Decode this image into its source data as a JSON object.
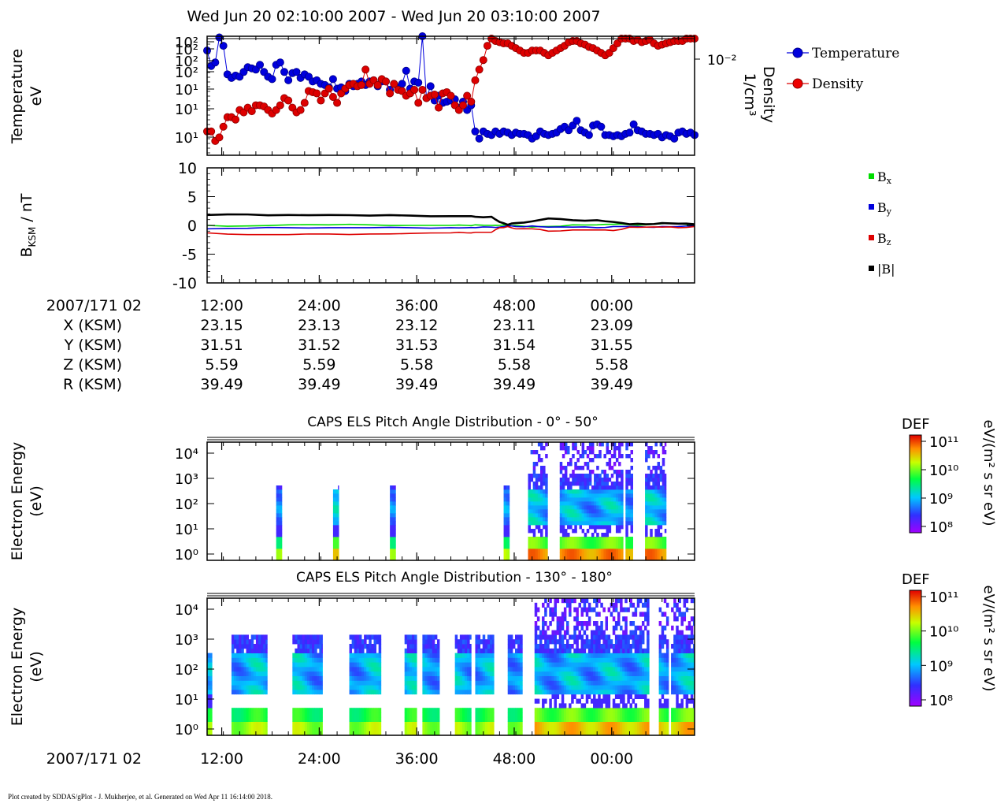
{
  "header": {
    "title": "Wed Jun 20 02:10:00 2007 - Wed Jun 20 03:10:00 2007"
  },
  "footer": {
    "text": "Plot created by SDDAS/gPlot - J. Mukherjee, et al.  Generated on Wed Apr 11 16:14:00 2018."
  },
  "time_axis": {
    "ticks": [
      "12:00",
      "24:00",
      "36:00",
      "48:00",
      "00:00"
    ],
    "label": "2007/171 02"
  },
  "ephemeris": {
    "rows": [
      {
        "label": "X (KSM)",
        "values": [
          "23.15",
          "23.13",
          "23.12",
          "23.11",
          "23.09"
        ]
      },
      {
        "label": "Y (KSM)",
        "values": [
          "31.51",
          "31.52",
          "31.53",
          "31.54",
          "31.55"
        ]
      },
      {
        "label": "Z (KSM)",
        "values": [
          "5.59",
          "5.59",
          "5.58",
          "5.58",
          "5.58"
        ]
      },
      {
        "label": "R (KSM)",
        "values": [
          "39.49",
          "39.49",
          "39.49",
          "39.49",
          "39.49"
        ]
      }
    ]
  },
  "colorbar": {
    "title": "DEF",
    "units": "eV/(m² s sr eV)",
    "ticks": [
      "10¹¹",
      "10¹⁰",
      "10⁹",
      "10⁸"
    ]
  },
  "chart_data": [
    {
      "type": "line",
      "panel": "moments",
      "ylabel": "Temperature eV",
      "ylabel_lines": [
        "Temperature",
        "eV"
      ],
      "yticks_left": [
        "10²",
        "10²",
        "10²",
        "10²",
        "10¹",
        "10¹",
        "10¹"
      ],
      "y2label": "Density 1/cm³",
      "y2label_lines": [
        "Density",
        "1/cm³"
      ],
      "ytick_right": "10⁻²",
      "xlim_min": [
        0,
        60
      ],
      "legend_position": "right",
      "series": [
        {
          "name": "Temperature",
          "color": "#0000dd",
          "x": [
            0,
            0.5,
            1,
            1.5,
            2,
            2.5,
            3,
            3.5,
            4,
            4.5,
            5,
            5.5,
            6,
            6.5,
            7,
            7.5,
            8,
            8.5,
            9,
            9.5,
            10,
            10.5,
            11,
            11.5,
            12,
            12.5,
            13,
            13.5,
            14,
            14.5,
            15,
            15.5,
            16,
            16.5,
            17,
            17.5,
            18,
            18.5,
            19,
            19.5,
            20,
            20.5,
            21,
            21.5,
            22,
            22.5,
            23,
            23.5,
            24,
            24.5,
            25,
            25.5,
            26,
            26.5,
            27,
            27.5,
            28,
            28.5,
            29,
            29.5,
            30,
            30.5,
            31,
            31.5,
            32,
            32.5,
            33,
            33.5,
            34,
            34.5,
            35,
            35.5,
            36,
            36.5,
            37,
            37.5,
            38,
            38.5,
            39,
            39.5,
            40,
            40.5,
            41,
            41.5,
            42,
            42.5,
            43,
            43.5,
            44,
            44.5,
            45,
            45.5,
            46,
            46.5,
            47,
            47.5,
            48,
            48.5,
            49,
            49.5,
            50,
            50.5,
            51,
            51.5,
            52,
            52.5,
            53,
            53.5,
            54,
            54.5,
            55,
            55.5,
            56,
            56.5,
            57,
            57.5,
            58,
            58.5,
            59,
            59.5,
            60
          ],
          "values": [
            88,
            75,
            78,
            99,
            92,
            68,
            65,
            67,
            66,
            70,
            74,
            73,
            72,
            76,
            70,
            66,
            64,
            76,
            78,
            70,
            63,
            69,
            70,
            65,
            68,
            66,
            62,
            63,
            60,
            59,
            57,
            64,
            56,
            57,
            54,
            60,
            58,
            60,
            62,
            59,
            62,
            63,
            58,
            62,
            62,
            55,
            60,
            57,
            60,
            71,
            56,
            62,
            61,
            100,
            48,
            58,
            46,
            50,
            44,
            45,
            46,
            47,
            40,
            45,
            38,
            42,
            20,
            14,
            20,
            18,
            17,
            20,
            18,
            20,
            19,
            17,
            19,
            18,
            18,
            17,
            14,
            16,
            20,
            18,
            17,
            18,
            19,
            22,
            24,
            21,
            25,
            29,
            21,
            19,
            17,
            25,
            26,
            24,
            17,
            17,
            16,
            17,
            16,
            18,
            19,
            26,
            21,
            20,
            18,
            18,
            17,
            18,
            15,
            17,
            16,
            14,
            19,
            20,
            18,
            19,
            17
          ]
        },
        {
          "name": "Density",
          "color": "#dd0000",
          "x": [
            0,
            0.5,
            1,
            1.5,
            2,
            2.5,
            3,
            3.5,
            4,
            4.5,
            5,
            5.5,
            6,
            6.5,
            7,
            7.5,
            8,
            8.5,
            9,
            9.5,
            10,
            10.5,
            11,
            11.5,
            12,
            12.5,
            13,
            13.5,
            14,
            14.5,
            15,
            15.5,
            16,
            16.5,
            17,
            17.5,
            18,
            18.5,
            19,
            19.5,
            20,
            20.5,
            21,
            21.5,
            22,
            22.5,
            23,
            23.5,
            24,
            24.5,
            25,
            25.5,
            26,
            26.5,
            27,
            27.5,
            28,
            28.5,
            29,
            29.5,
            30,
            30.5,
            31,
            31.5,
            32,
            32.5,
            33,
            33.5,
            34,
            34.5,
            35,
            35.5,
            36,
            36.5,
            37,
            37.5,
            38,
            38.5,
            39,
            39.5,
            40,
            40.5,
            41,
            41.5,
            42,
            42.5,
            43,
            43.5,
            44,
            44.5,
            45,
            45.5,
            46,
            46.5,
            47,
            47.5,
            48,
            48.5,
            49,
            49.5,
            50,
            50.5,
            51,
            51.5,
            52,
            52.5,
            53,
            53.5,
            54,
            54.5,
            55,
            55.5,
            56,
            56.5,
            57,
            57.5,
            58,
            58.5,
            59,
            59.5,
            60
          ],
          "values": [
            20,
            20,
            12,
            15,
            24,
            32,
            32,
            30,
            38,
            36,
            40,
            37,
            42,
            42,
            41,
            38,
            35,
            38,
            42,
            48,
            46,
            40,
            36,
            38,
            44,
            54,
            53,
            52,
            46,
            52,
            56,
            49,
            44,
            52,
            56,
            59,
            60,
            58,
            59,
            72,
            60,
            63,
            59,
            64,
            62,
            52,
            60,
            55,
            54,
            50,
            52,
            55,
            44,
            55,
            48,
            50,
            51,
            40,
            52,
            53,
            50,
            42,
            38,
            42,
            50,
            45,
            63,
            72,
            80,
            92,
            98,
            96,
            95,
            94,
            94,
            92,
            90,
            88,
            86,
            86,
            88,
            88,
            88,
            86,
            84,
            86,
            88,
            90,
            92,
            95,
            96,
            96,
            94,
            93,
            91,
            90,
            88,
            86,
            84,
            86,
            90,
            94,
            98,
            98,
            98,
            96,
            97,
            95,
            96,
            97,
            94,
            92,
            93,
            94,
            95,
            96,
            96,
            96,
            98,
            98,
            98
          ]
        }
      ]
    },
    {
      "type": "line",
      "panel": "magnetic_field",
      "ylabel": "B_KSM / nT",
      "ylim": [
        -10,
        10
      ],
      "yticks": [
        10,
        5,
        0,
        -5,
        -10
      ],
      "legend_position": "right",
      "series": [
        {
          "name": "Bx",
          "color": "#00dd00",
          "x": [
            0,
            5,
            10,
            15,
            20,
            25,
            30,
            32,
            33,
            35,
            36,
            37,
            38,
            40,
            42,
            45,
            48,
            50,
            52,
            54,
            56,
            58,
            60
          ],
          "values": [
            0.0,
            -0.1,
            0.1,
            0.1,
            0.1,
            0.0,
            0.0,
            0.0,
            0.1,
            0.0,
            0.0,
            0.0,
            0.0,
            -0.3,
            -0.2,
            0.1,
            0.1,
            0.2,
            0.1,
            0.1,
            0.3,
            0.3,
            0.2
          ]
        },
        {
          "name": "By",
          "color": "#0000dd",
          "x": [
            0,
            5,
            10,
            15,
            20,
            25,
            30,
            32,
            33,
            35,
            36,
            37,
            38,
            40,
            42,
            45,
            48,
            50,
            52,
            54,
            56,
            58,
            60
          ],
          "values": [
            -0.6,
            -0.5,
            -0.4,
            -0.4,
            -0.4,
            -0.4,
            -0.4,
            -0.4,
            -0.4,
            -0.3,
            -0.3,
            -0.1,
            -0.2,
            -0.1,
            -0.3,
            -0.3,
            -0.4,
            -0.2,
            -0.2,
            -0.3,
            -0.2,
            -0.2,
            -0.1
          ]
        },
        {
          "name": "Bz",
          "color": "#dd0000",
          "x": [
            0,
            5,
            10,
            15,
            20,
            25,
            30,
            32,
            33,
            35,
            36,
            37,
            38,
            40,
            42,
            45,
            48,
            50,
            52,
            54,
            56,
            58,
            60
          ],
          "values": [
            -1.3,
            -1.6,
            -1.6,
            -1.5,
            -1.5,
            -1.4,
            -1.3,
            -1.3,
            -1.2,
            -1.2,
            -0.4,
            -0.2,
            -0.6,
            -0.6,
            -1.0,
            -0.8,
            -0.8,
            -0.9,
            -0.3,
            -0.3,
            -0.3,
            -0.4,
            -0.2
          ]
        },
        {
          "name": "|B|",
          "color": "#000000",
          "x": [
            0,
            5,
            10,
            15,
            20,
            25,
            30,
            32,
            33,
            35,
            36,
            37,
            38,
            40,
            42,
            45,
            48,
            50,
            52,
            54,
            56,
            58,
            60
          ],
          "values": [
            1.8,
            1.9,
            1.8,
            1.8,
            1.7,
            1.7,
            1.6,
            1.6,
            1.5,
            1.5,
            0.6,
            0.1,
            0.4,
            0.7,
            1.2,
            0.9,
            0.9,
            0.6,
            0.2,
            0.2,
            0.4,
            0.3,
            0.2
          ]
        }
      ]
    },
    {
      "type": "heatmap",
      "panel": "els_0_50",
      "title": "CAPS ELS Pitch Angle Distribution - 0° - 50°",
      "ylabel": "Electron Energy (eV)",
      "ylabel_lines": [
        "Electron Energy",
        "(eV)"
      ],
      "yticks": [
        "10⁴",
        "10³",
        "10²",
        "10¹",
        "10⁰"
      ],
      "x_blocks": [
        [
          8.5,
          9.2
        ],
        [
          15.5,
          16.2
        ],
        [
          22.5,
          23.2
        ],
        [
          36.5,
          37.2
        ],
        [
          39.5,
          56.5
        ]
      ],
      "x_gaps_inside": [
        [
          41.8,
          43.3
        ],
        [
          51.0,
          51.4
        ],
        [
          52.2,
          53.6
        ]
      ]
    },
    {
      "type": "heatmap",
      "panel": "els_130_180",
      "title": "CAPS ELS Pitch Angle Distribution - 130° - 180°",
      "ylabel": "Electron Energy (eV)",
      "ylabel_lines": [
        "Electron Energy",
        "(eV)"
      ],
      "yticks": [
        "10⁴",
        "10³",
        "10²",
        "10¹",
        "10⁰"
      ],
      "x_blocks": [
        [
          0,
          0.6
        ],
        [
          3.0,
          7.4
        ],
        [
          10.5,
          14.2
        ],
        [
          17.5,
          21.4
        ],
        [
          24.3,
          25.8
        ],
        [
          26.5,
          28.6
        ],
        [
          30.5,
          32.5
        ],
        [
          33.0,
          35.3
        ],
        [
          37.0,
          60
        ]
      ],
      "x_gaps_inside": [
        [
          38.6,
          40.2
        ],
        [
          54.3,
          55.4
        ],
        [
          56.5,
          57.0
        ]
      ]
    }
  ]
}
